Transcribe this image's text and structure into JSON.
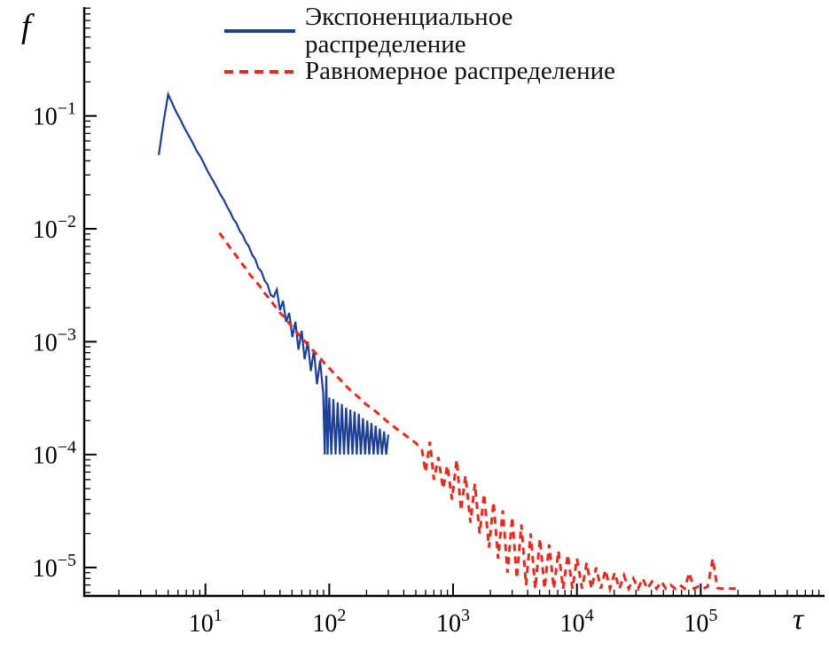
{
  "figure": {
    "ylabel": "f",
    "xlabel": "τ",
    "background": "#ffffff"
  },
  "legend": {
    "position": "top-center",
    "items": [
      {
        "key": "exponential",
        "line1": "Экспоненциальное",
        "line2": "распределение",
        "color": "#1e3f96",
        "style": "solid"
      },
      {
        "key": "uniform",
        "line1": "Равномерное распределение",
        "line2": "",
        "color": "#e8291e",
        "style": "dashed"
      }
    ]
  },
  "chart_data": {
    "type": "line",
    "title": "",
    "xlabel": "τ",
    "ylabel": "f",
    "x_scale": "log",
    "y_scale": "log",
    "grid": false,
    "xlim": [
      1.05,
      1000000
    ],
    "ylim": [
      5.6e-06,
      0.92
    ],
    "x_tick_exponents": [
      1,
      2,
      3,
      4,
      5
    ],
    "y_tick_exponents": [
      -1,
      -2,
      -3,
      -4,
      -5
    ],
    "legend_position": "top-center",
    "series": [
      {
        "key": "exponential",
        "name": "Экспоненциальное распределение",
        "color": "#1e3f96",
        "line_style": "solid",
        "line_width": 2.2,
        "points": [
          [
            4.2,
            0.045
          ],
          [
            4.6,
            0.09
          ],
          [
            5.0,
            0.155
          ],
          [
            5.3,
            0.135
          ],
          [
            5.6,
            0.118
          ],
          [
            5.9,
            0.105
          ],
          [
            6.3,
            0.092
          ],
          [
            6.7,
            0.08
          ],
          [
            7.1,
            0.071
          ],
          [
            7.5,
            0.064
          ],
          [
            8.0,
            0.056
          ],
          [
            8.5,
            0.049
          ],
          [
            9.0,
            0.0445
          ],
          [
            9.5,
            0.04
          ],
          [
            10.0,
            0.0355
          ],
          [
            10.6,
            0.0312
          ],
          [
            11.2,
            0.0282
          ],
          [
            11.9,
            0.025
          ],
          [
            12.6,
            0.0223
          ],
          [
            13.3,
            0.0199
          ],
          [
            14.1,
            0.018
          ],
          [
            15.0,
            0.0156
          ],
          [
            15.9,
            0.014
          ],
          [
            16.8,
            0.0122
          ],
          [
            17.8,
            0.0112
          ],
          [
            18.9,
            0.0096
          ],
          [
            20.0,
            0.0088
          ],
          [
            21.2,
            0.0076
          ],
          [
            22.4,
            0.007
          ],
          [
            23.8,
            0.0059
          ],
          [
            25.2,
            0.0054
          ],
          [
            26.7,
            0.0045
          ],
          [
            28.3,
            0.0042
          ],
          [
            30.0,
            0.0035
          ],
          [
            31.8,
            0.0032
          ],
          [
            33.6,
            0.0026
          ],
          [
            35.6,
            0.0025
          ],
          [
            37.7,
            0.0029
          ],
          [
            40.0,
            0.0019
          ],
          [
            42.3,
            0.0023
          ],
          [
            44.8,
            0.0015
          ],
          [
            47.5,
            0.0018
          ],
          [
            50.3,
            0.0011
          ],
          [
            53.3,
            0.0015
          ],
          [
            56.4,
            0.00085
          ],
          [
            59.8,
            0.00125
          ],
          [
            63.3,
            0.0007
          ],
          [
            67.0,
            0.001
          ],
          [
            71.0,
            0.00055
          ],
          [
            75.2,
            0.00085
          ],
          [
            79.6,
            0.00042
          ],
          [
            84.3,
            0.00068
          ],
          [
            89.3,
            0.00035
          ],
          [
            92.0,
            0.0001
          ],
          [
            94.6,
            0.0005
          ],
          [
            97.0,
            0.0001
          ],
          [
            100,
            0.00032
          ],
          [
            104,
            0.0001
          ],
          [
            108,
            0.00031
          ],
          [
            112.5,
            0.0001
          ],
          [
            117,
            0.00029
          ],
          [
            121.7,
            0.0001
          ],
          [
            126.5,
            0.00028
          ],
          [
            131.6,
            0.0001
          ],
          [
            136.9,
            0.00026
          ],
          [
            142.3,
            0.0001
          ],
          [
            148,
            0.00025
          ],
          [
            154,
            0.0001
          ],
          [
            160,
            0.00024
          ],
          [
            166.5,
            0.0001
          ],
          [
            173.2,
            0.00023
          ],
          [
            180,
            0.0001
          ],
          [
            187.3,
            0.00021
          ],
          [
            194.7,
            0.0001
          ],
          [
            202.5,
            0.0002
          ],
          [
            210.6,
            0.0001
          ],
          [
            219,
            0.00019
          ],
          [
            227.8,
            0.0001
          ],
          [
            236.9,
            0.00018
          ],
          [
            246.4,
            0.0001
          ],
          [
            256.2,
            0.00017
          ],
          [
            266.5,
            0.0001
          ],
          [
            277.1,
            0.00016
          ],
          [
            288.2,
            0.0001
          ],
          [
            299.7,
            0.00015
          ]
        ]
      },
      {
        "key": "uniform",
        "name": "Равномерное распределение",
        "color": "#e8291e",
        "line_style": "dashed",
        "line_width": 3,
        "points": [
          [
            13,
            0.0092
          ],
          [
            14,
            0.0082
          ],
          [
            15,
            0.0074
          ],
          [
            16,
            0.0067
          ],
          [
            17.5,
            0.0059
          ],
          [
            19,
            0.0052
          ],
          [
            21,
            0.0045
          ],
          [
            23,
            0.0039
          ],
          [
            25,
            0.0035
          ],
          [
            27.5,
            0.0031
          ],
          [
            30,
            0.0027
          ],
          [
            33,
            0.0024
          ],
          [
            36,
            0.0021
          ],
          [
            40,
            0.0018
          ],
          [
            44,
            0.00162
          ],
          [
            48,
            0.00143
          ],
          [
            53,
            0.00127
          ],
          [
            58,
            0.00112
          ],
          [
            64,
            0.001
          ],
          [
            70,
            0.00089
          ],
          [
            77,
            0.0008
          ],
          [
            85,
            0.00071
          ],
          [
            93,
            0.00063
          ],
          [
            102,
            0.00057
          ],
          [
            112,
            0.00051
          ],
          [
            123,
            0.00046
          ],
          [
            135,
            0.00041
          ],
          [
            149,
            0.00037
          ],
          [
            163,
            0.00034
          ],
          [
            180,
            0.00031
          ],
          [
            197,
            0.00028
          ],
          [
            217,
            0.00026
          ],
          [
            238,
            0.00024
          ],
          [
            262,
            0.00022
          ],
          [
            288,
            0.0002
          ],
          [
            316,
            0.000185
          ],
          [
            348,
            0.00017
          ],
          [
            382,
            0.000158
          ],
          [
            420,
            0.000146
          ],
          [
            462,
            0.000135
          ],
          [
            508,
            0.000125
          ],
          [
            560,
            0.00011
          ],
          [
            600,
            7e-05
          ],
          [
            650,
            0.00013
          ],
          [
            700,
            6e-05
          ],
          [
            760,
            9.5e-05
          ],
          [
            830,
            5e-05
          ],
          [
            900,
            8e-05
          ],
          [
            980,
            4e-05
          ],
          [
            1070,
            9e-05
          ],
          [
            1160,
            3.2e-05
          ],
          [
            1260,
            6.5e-05
          ],
          [
            1380,
            2.5e-05
          ],
          [
            1500,
            5.5e-05
          ],
          [
            1640,
            2e-05
          ],
          [
            1780,
            4.5e-05
          ],
          [
            1950,
            1.5e-05
          ],
          [
            2120,
            3.8e-05
          ],
          [
            2310,
            1.2e-05
          ],
          [
            2520,
            3.2e-05
          ],
          [
            2750,
            9e-06
          ],
          [
            3000,
            2.8e-05
          ],
          [
            3270,
            8e-06
          ],
          [
            3560,
            2.4e-05
          ],
          [
            3880,
            7e-06
          ],
          [
            4230,
            2e-05
          ],
          [
            4610,
            6.5e-06
          ],
          [
            5030,
            1.8e-05
          ],
          [
            5480,
            6.5e-06
          ],
          [
            5970,
            1.6e-05
          ],
          [
            6510,
            6.5e-06
          ],
          [
            7100,
            1.4e-05
          ],
          [
            7740,
            6.5e-06
          ],
          [
            8440,
            1.3e-05
          ],
          [
            9200,
            6.5e-06
          ],
          [
            10000,
            1.2e-05
          ],
          [
            11000,
            6.5e-06
          ],
          [
            12000,
            1.1e-05
          ],
          [
            13100,
            6.5e-06
          ],
          [
            14300,
            1e-05
          ],
          [
            15600,
            6.5e-06
          ],
          [
            17000,
            9.5e-06
          ],
          [
            18500,
            6.5e-06
          ],
          [
            20200,
            9e-06
          ],
          [
            22000,
            6.5e-06
          ],
          [
            24000,
            8.5e-06
          ],
          [
            26200,
            6.5e-06
          ],
          [
            28600,
            8e-06
          ],
          [
            31200,
            6.5e-06
          ],
          [
            34000,
            8e-06
          ],
          [
            37000,
            6.5e-06
          ],
          [
            40400,
            7.5e-06
          ],
          [
            44000,
            6.5e-06
          ],
          [
            48000,
            7.5e-06
          ],
          [
            52400,
            6.5e-06
          ],
          [
            57100,
            7e-06
          ],
          [
            62300,
            6.5e-06
          ],
          [
            68000,
            7e-06
          ],
          [
            74100,
            6.5e-06
          ],
          [
            80800,
            9e-06
          ],
          [
            88100,
            6.5e-06
          ],
          [
            96100,
            6.8e-06
          ],
          [
            104800,
            6.5e-06
          ],
          [
            114000,
            6.8e-06
          ],
          [
            125000,
            1.2e-05
          ],
          [
            136000,
            6.6e-06
          ],
          [
            148000,
            6.5e-06
          ],
          [
            162000,
            6.6e-06
          ],
          [
            176000,
            6.5e-06
          ],
          [
            192000,
            6.5e-06
          ]
        ]
      }
    ]
  }
}
